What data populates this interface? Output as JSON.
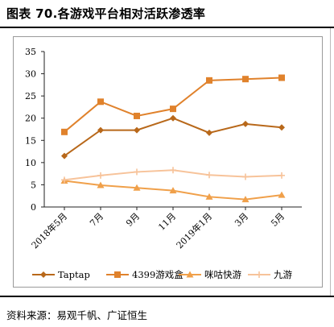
{
  "title": "图表 70.各游戏平台相对活跃渗透率",
  "source": "资料来源：易观千帆、广证恒生",
  "chart_data": {
    "type": "line",
    "x": [
      "2018年5月",
      "7月",
      "9月",
      "11月",
      "2019年1月",
      "3月",
      "5月"
    ],
    "y_ticks": [
      0,
      5,
      10,
      15,
      20,
      25,
      30,
      35
    ],
    "ylim": [
      0,
      35
    ],
    "grid": false,
    "legend_position": "bottom",
    "series": [
      {
        "name": "Taptap",
        "color": "#b8681a",
        "marker": "diamond",
        "values": [
          11.5,
          17.3,
          17.3,
          20.0,
          16.7,
          18.7,
          17.9
        ]
      },
      {
        "name": "4399游戏盒",
        "color": "#e0822c",
        "marker": "square",
        "values": [
          16.9,
          23.7,
          20.5,
          22.1,
          28.5,
          28.8,
          29.1
        ]
      },
      {
        "name": "咪咕快游",
        "color": "#f0a04a",
        "marker": "triangle",
        "values": [
          5.9,
          4.9,
          4.3,
          3.7,
          2.3,
          1.7,
          2.7
        ]
      },
      {
        "name": "九游",
        "color": "#f7c39a",
        "marker": "cross",
        "values": [
          6.1,
          7.1,
          7.9,
          8.3,
          7.2,
          6.8,
          7.1
        ]
      }
    ]
  }
}
